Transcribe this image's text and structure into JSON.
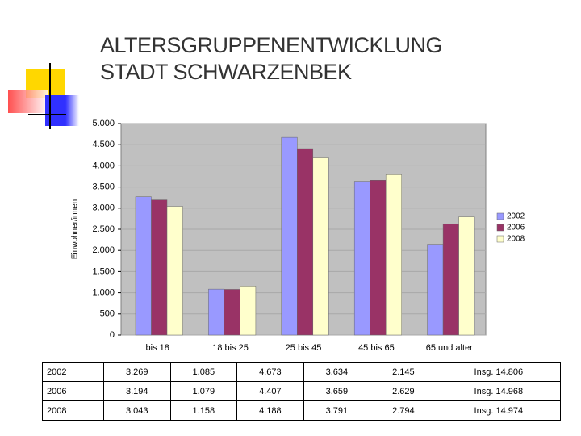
{
  "chart_data": {
    "type": "bar",
    "title": "ALTERSGRUPPENENTWICKLUNG STADT SCHWARZENBEK",
    "y_label": "Einwohner/innen",
    "categories": [
      "bis 18",
      "18 bis 25",
      "25 bis 45",
      "45 bis 65",
      "65 und alter"
    ],
    "series": [
      {
        "name": "2002",
        "color": "#9999ff",
        "values": [
          3269,
          1085,
          4673,
          3634,
          2145
        ]
      },
      {
        "name": "2006",
        "color": "#993366",
        "values": [
          3194,
          1079,
          4407,
          3659,
          2629
        ]
      },
      {
        "name": "2008",
        "color": "#ffffcc",
        "values": [
          3043,
          1158,
          4188,
          3791,
          2794
        ]
      }
    ],
    "ylim": [
      0,
      5000
    ],
    "yticks": [
      0,
      500,
      {
        "value": 1000,
        "label": "1.000"
      },
      {
        "value": 1500,
        "label": "1.500"
      },
      {
        "value": 2000,
        "label": "2.000"
      },
      {
        "value": 2500,
        "label": "2.500"
      },
      {
        "value": 3000,
        "label": "3.000"
      },
      {
        "value": 3500,
        "label": "3.500"
      },
      {
        "value": 4000,
        "label": "4.000"
      },
      {
        "value": 4500,
        "label": "4.500"
      },
      {
        "value": 5000,
        "label": "5.000"
      }
    ],
    "grid": true,
    "legend": "right"
  },
  "table": {
    "rows": [
      [
        "2002",
        "3.269",
        "1.085",
        "4.673",
        "3.634",
        "2.145",
        "Insg. 14.806"
      ],
      [
        "2006",
        "3.194",
        "1.079",
        "4.407",
        "3.659",
        "2.629",
        "Insg. 14.968"
      ],
      [
        "2008",
        "3.043",
        "1.158",
        "4.188",
        "3.791",
        "2.794",
        "Insg. 14.974"
      ]
    ]
  }
}
